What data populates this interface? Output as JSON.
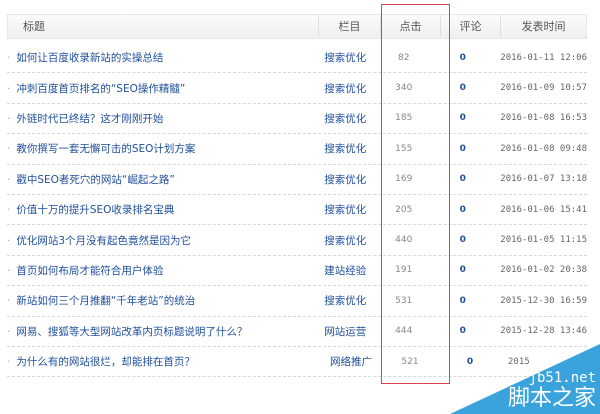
{
  "header": {
    "title": "标题",
    "category": "栏目",
    "clicks": "点击",
    "comments": "评论",
    "date": "发表时间"
  },
  "rows": [
    {
      "title": "如何让百度收录新站的实操总结",
      "category": "搜索优化",
      "clicks": "82",
      "comments": "0",
      "date": "2016-01-11 12:06"
    },
    {
      "title": "冲刺百度首页排名的“SEO操作精髓”",
      "category": "搜索优化",
      "clicks": "340",
      "comments": "0",
      "date": "2016-01-09 10:57"
    },
    {
      "title": "外链时代已终结？这才刚刚开始",
      "category": "搜索优化",
      "clicks": "185",
      "comments": "0",
      "date": "2016-01-08 16:53"
    },
    {
      "title": "教你撰写一套无懈可击的SEO计划方案",
      "category": "搜索优化",
      "clicks": "155",
      "comments": "0",
      "date": "2016-01-08 09:48"
    },
    {
      "title": "戳中SEO者死穴的网站“崛起之路”",
      "category": "搜索优化",
      "clicks": "169",
      "comments": "0",
      "date": "2016-01-07 13:18"
    },
    {
      "title": "价值十万的提升SEO收录排名宝典",
      "category": "搜索优化",
      "clicks": "205",
      "comments": "0",
      "date": "2016-01-06 15:41"
    },
    {
      "title": "优化网站3个月没有起色竟然是因为它",
      "category": "搜索优化",
      "clicks": "440",
      "comments": "0",
      "date": "2016-01-05 11:15"
    },
    {
      "title": "首页如何布局才能符合用户体验",
      "category": "建站经验",
      "clicks": "191",
      "comments": "0",
      "date": "2016-01-02 20:38"
    },
    {
      "title": "新站如何三个月推翻“千年老站”的统治",
      "category": "搜索优化",
      "clicks": "531",
      "comments": "0",
      "date": "2015-12-30 16:59"
    },
    {
      "title": "网易、搜狐等大型网站改革内页标题说明了什么？",
      "category": "网站运营",
      "clicks": "444",
      "comments": "0",
      "date": "2015-12-28 13:46"
    },
    {
      "title": "为什么有的网站很烂，却能排在首页？",
      "category": "网络推广",
      "clicks": "521",
      "comments": "0",
      "date": "2015"
    }
  ],
  "watermark": {
    "domain": "jb51.net",
    "name": "脚本之家"
  },
  "colors": {
    "link": "#1f4e9b",
    "highlight": "#d9434e",
    "watermark": "#3aa3dc"
  }
}
